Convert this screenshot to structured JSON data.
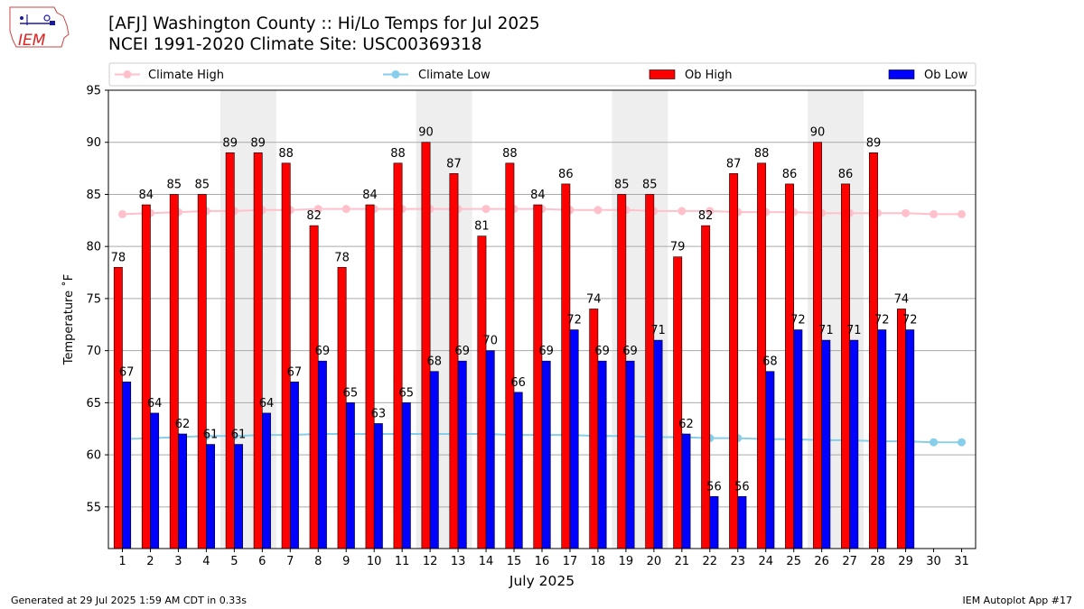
{
  "title_line1": "[AFJ] Washington County :: Hi/Lo Temps for Jul 2025",
  "title_line2": "NCEI 1991-2020 Climate Site: USC00369318",
  "logo_text": "IEM",
  "footer_left": "Generated at 29 Jul 2025 1:59 AM CDT in 0.33s",
  "footer_right": "IEM Autoplot App #17",
  "colors": {
    "ob_high": "#ff0000",
    "ob_low": "#0000ff",
    "climate_high": "#ffc0cb",
    "climate_low": "#87ceeb",
    "weekend_shade": "#eeeeee",
    "grid": "#aaaaaa"
  },
  "chart_data": {
    "type": "bar",
    "xlabel": "July 2025",
    "ylabel": "Temperature ˚F",
    "ylim": [
      51,
      95
    ],
    "yticks": [
      55,
      60,
      65,
      70,
      75,
      80,
      85,
      90,
      95
    ],
    "xlim": [
      0.5,
      31.5
    ],
    "days": [
      1,
      2,
      3,
      4,
      5,
      6,
      7,
      8,
      9,
      10,
      11,
      12,
      13,
      14,
      15,
      16,
      17,
      18,
      19,
      20,
      21,
      22,
      23,
      24,
      25,
      26,
      27,
      28,
      29,
      30,
      31
    ],
    "grid": "horizontal",
    "legend_position": "top",
    "weekend_shading": [
      [
        5,
        6
      ],
      [
        12,
        13
      ],
      [
        19,
        20
      ],
      [
        26,
        27
      ]
    ],
    "series": [
      {
        "name": "Ob High",
        "kind": "bar",
        "values": [
          78,
          84,
          85,
          85,
          89,
          89,
          88,
          82,
          78,
          84,
          88,
          90,
          87,
          81,
          88,
          84,
          86,
          74,
          85,
          85,
          79,
          82,
          87,
          88,
          86,
          90,
          86,
          89,
          74
        ]
      },
      {
        "name": "Ob Low",
        "kind": "bar",
        "values": [
          67,
          64,
          62,
          61,
          61,
          64,
          67,
          69,
          65,
          63,
          65,
          68,
          69,
          70,
          66,
          69,
          72,
          69,
          69,
          71,
          62,
          56,
          56,
          68,
          72,
          71,
          71,
          72,
          72
        ]
      },
      {
        "name": "Climate High",
        "kind": "line",
        "values": [
          83.1,
          83.2,
          83.3,
          83.4,
          83.4,
          83.5,
          83.5,
          83.6,
          83.6,
          83.6,
          83.6,
          83.6,
          83.6,
          83.6,
          83.6,
          83.6,
          83.5,
          83.5,
          83.5,
          83.4,
          83.4,
          83.4,
          83.3,
          83.3,
          83.3,
          83.2,
          83.2,
          83.2,
          83.2,
          83.1,
          83.1
        ]
      },
      {
        "name": "Climate Low",
        "kind": "line",
        "values": [
          61.5,
          61.6,
          61.7,
          61.8,
          61.8,
          61.9,
          61.9,
          62.0,
          62.0,
          62.0,
          62.0,
          62.0,
          62.0,
          62.0,
          61.9,
          61.9,
          61.9,
          61.8,
          61.8,
          61.7,
          61.7,
          61.6,
          61.6,
          61.5,
          61.5,
          61.4,
          61.4,
          61.3,
          61.3,
          61.2,
          61.2
        ]
      }
    ]
  }
}
